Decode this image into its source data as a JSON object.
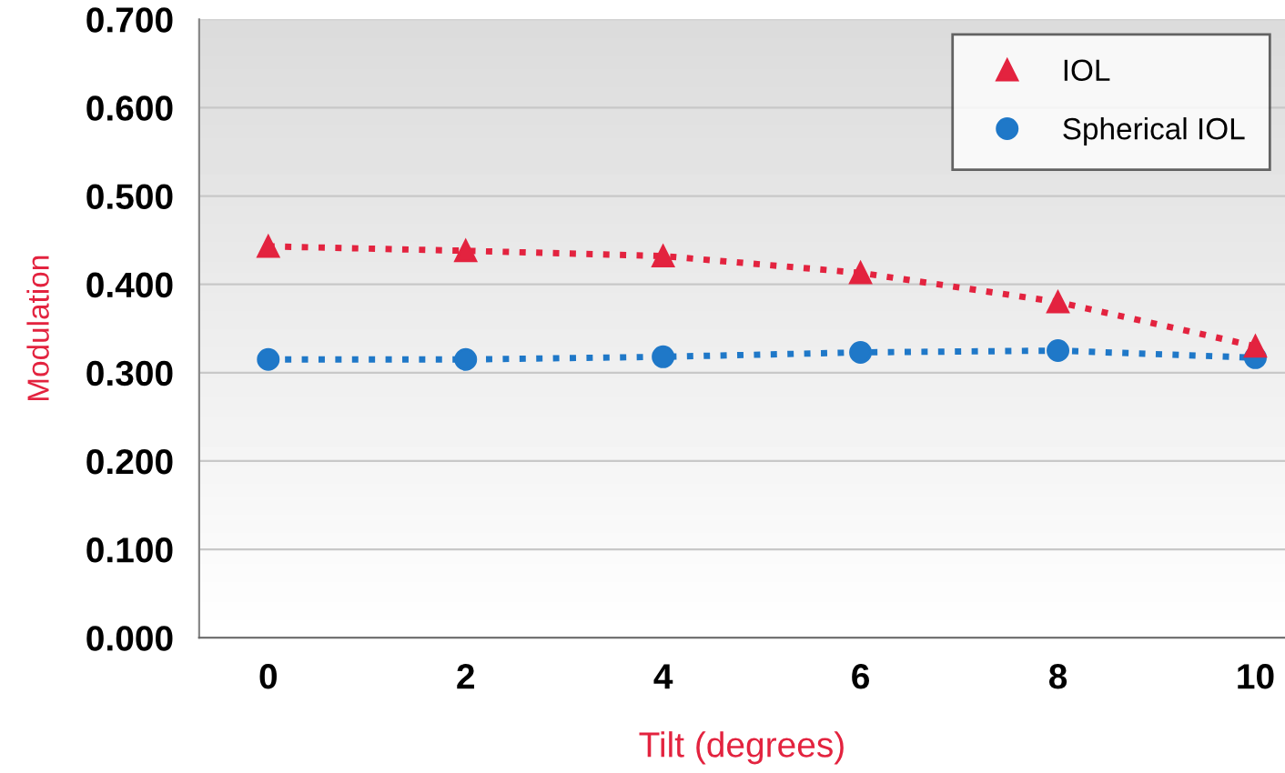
{
  "chart_data": {
    "type": "line",
    "xlabel": "Tilt (degrees)",
    "ylabel": "Modulation",
    "x": [
      0,
      2,
      4,
      6,
      8,
      10
    ],
    "series": [
      {
        "name": "IOL",
        "color": "#e3233f",
        "values": [
          0.443,
          0.438,
          0.432,
          0.413,
          0.38,
          0.33
        ],
        "marker": "triangle"
      },
      {
        "name": "Spherical IOL",
        "color": "#1f78c8",
        "values": [
          0.315,
          0.315,
          0.318,
          0.323,
          0.325,
          0.317
        ],
        "marker": "circle"
      }
    ],
    "line_style": "dotted",
    "grid": "y",
    "legend": "top right",
    "xlim": [
      -0.7,
      10.3
    ],
    "xticks": [
      0,
      2,
      4,
      6,
      8,
      10
    ],
    "ylim": [
      0,
      0.7
    ],
    "yticks": [
      {
        "value": 0,
        "label": "0.000"
      },
      {
        "value": 0.1,
        "label": "0.100"
      },
      {
        "value": 0.2,
        "label": "0.200"
      },
      {
        "value": 0.3,
        "label": "0.300"
      },
      {
        "value": 0.4,
        "label": "0.400"
      },
      {
        "value": 0.5,
        "label": "0.500"
      },
      {
        "value": 0.6,
        "label": "0.600"
      },
      {
        "value": 0.7,
        "label": "0.700"
      }
    ]
  }
}
